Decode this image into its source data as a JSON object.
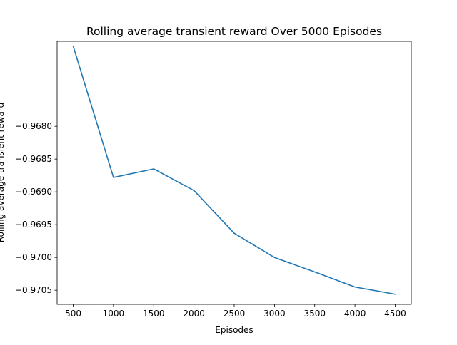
{
  "chart_data": {
    "type": "line",
    "title": "Rolling average transient reward Over 5000 Episodes",
    "xlabel": "Episodes",
    "ylabel": "Rolling average transient reward",
    "x": [
      500,
      1000,
      1500,
      2000,
      2500,
      3000,
      3500,
      4000,
      4500
    ],
    "series": [
      {
        "values": [
          -0.96678,
          -0.96878,
          -0.96865,
          -0.96898,
          -0.96963,
          -0.97,
          -0.97022,
          -0.97045,
          -0.97056
        ],
        "color": "#1f77b4"
      }
    ],
    "xticks": [
      500,
      1000,
      1500,
      2000,
      2500,
      3000,
      3500,
      4000,
      4500
    ],
    "xtick_labels": [
      "500",
      "1000",
      "1500",
      "2000",
      "2500",
      "3000",
      "3500",
      "4000",
      "4500"
    ],
    "yticks": [
      -0.968,
      -0.9685,
      -0.969,
      -0.9695,
      -0.97,
      -0.9705
    ],
    "ytick_labels": [
      "−0.9680",
      "−0.9685",
      "−0.9690",
      "−0.9695",
      "−0.9700",
      "−0.9705"
    ],
    "xlim": [
      300,
      4700
    ],
    "ylim": [
      -0.970715,
      -0.966705
    ],
    "grid": false,
    "legend": "none"
  }
}
